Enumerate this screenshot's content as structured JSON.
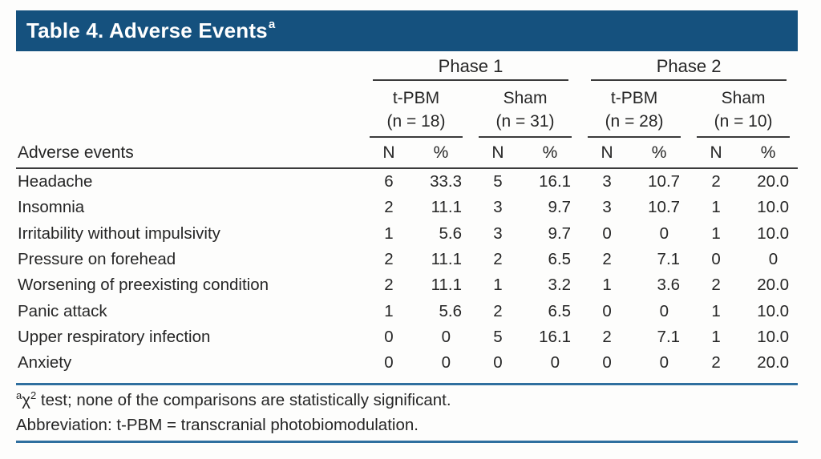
{
  "title": {
    "text": "Table 4. Adverse Events",
    "sup": "a"
  },
  "colors": {
    "title_bar_bg": "#15517e",
    "title_text": "#ffffff",
    "blue_rule": "#2f6f9f",
    "dark_rule": "#3b3b3b",
    "body_text": "#262626"
  },
  "table": {
    "phases": [
      {
        "label": "Phase 1",
        "arms": [
          {
            "name": "t-PBM",
            "n": "(n = 18)"
          },
          {
            "name": "Sham",
            "n": "(n = 31)"
          }
        ]
      },
      {
        "label": "Phase 2",
        "arms": [
          {
            "name": "t-PBM",
            "n": "(n = 28)"
          },
          {
            "name": "Sham",
            "n": "(n = 10)"
          }
        ]
      }
    ],
    "row_header": "Adverse events",
    "col_headers": [
      "N",
      "%",
      "N",
      "%",
      "N",
      "%",
      "N",
      "%"
    ],
    "rows": [
      {
        "label": "Headache",
        "values": [
          "6",
          "33.3",
          "5",
          "16.1",
          "3",
          "10.7",
          "2",
          "20.0"
        ]
      },
      {
        "label": "Insomnia",
        "values": [
          "2",
          "11.1",
          "3",
          "9.7",
          "3",
          "10.7",
          "1",
          "10.0"
        ]
      },
      {
        "label": "Irritability without impulsivity",
        "values": [
          "1",
          "5.6",
          "3",
          "9.7",
          "0",
          "0",
          "1",
          "10.0"
        ]
      },
      {
        "label": "Pressure on forehead",
        "values": [
          "2",
          "11.1",
          "2",
          "6.5",
          "2",
          "7.1",
          "0",
          "0"
        ]
      },
      {
        "label": "Worsening of preexisting condition",
        "values": [
          "2",
          "11.1",
          "1",
          "3.2",
          "1",
          "3.6",
          "2",
          "20.0"
        ]
      },
      {
        "label": "Panic attack",
        "values": [
          "1",
          "5.6",
          "2",
          "6.5",
          "0",
          "0",
          "1",
          "10.0"
        ]
      },
      {
        "label": "Upper respiratory infection",
        "values": [
          "0",
          "0",
          "5",
          "16.1",
          "2",
          "7.1",
          "1",
          "10.0"
        ]
      },
      {
        "label": "Anxiety",
        "values": [
          "0",
          "0",
          "0",
          "0",
          "0",
          "0",
          "2",
          "20.0"
        ]
      }
    ]
  },
  "footnotes": {
    "note_a": {
      "sup_a": "a",
      "chi": "χ",
      "sup_2": "2",
      "rest": " test; none of the comparisons are statistically significant."
    },
    "abbreviation": "Abbreviation: t-PBM = transcranial photobiomodulation."
  }
}
